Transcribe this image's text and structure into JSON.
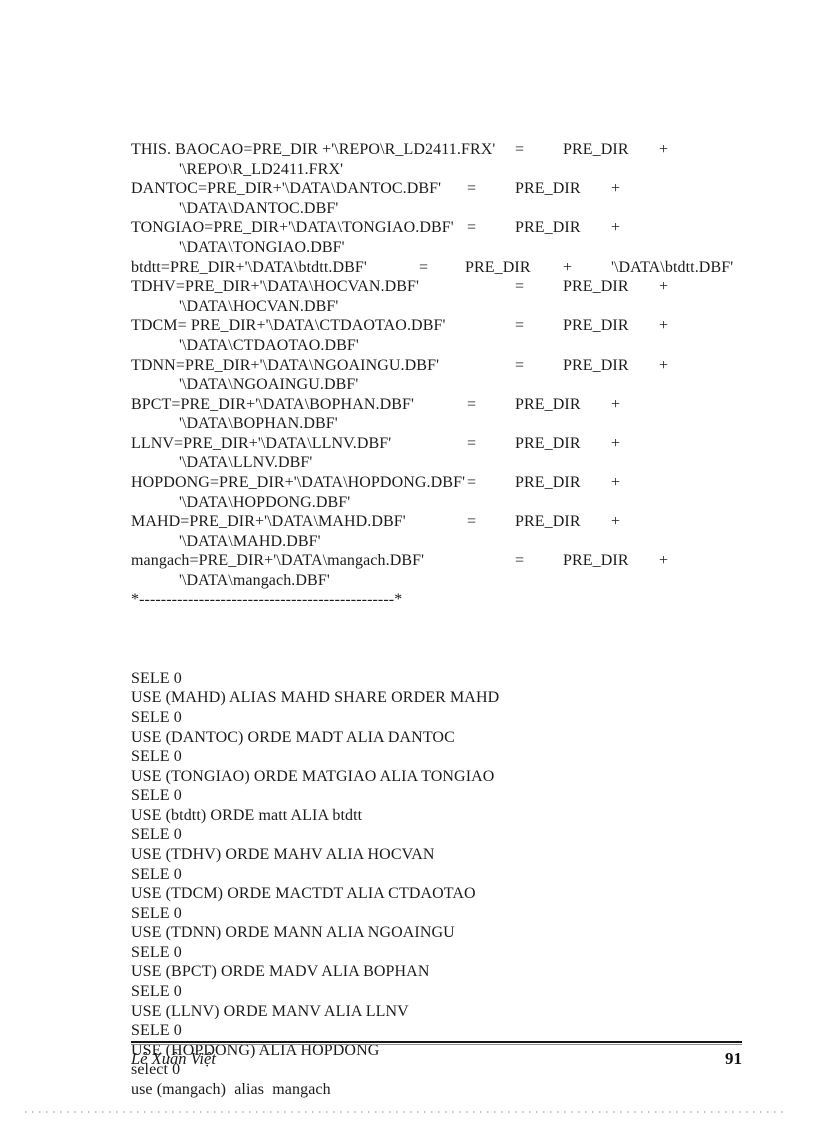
{
  "footer": {
    "author": "Lê Xuân Việt",
    "page_number": "91"
  },
  "listing": {
    "assignment_lines": [
      [
        [
          0,
          "THIS. BAOCAO=PRE_DIR +'\\REPO\\R_LD2411.FRX'"
        ],
        [
          384,
          "="
        ],
        [
          432,
          "PRE_DIR"
        ],
        [
          528,
          "+"
        ]
      ],
      [
        [
          48,
          "'\\REPO\\R_LD2411.FRX'"
        ]
      ],
      [
        [
          0,
          "DANTOC=PRE_DIR+'\\DATA\\DANTOC.DBF'"
        ],
        [
          336,
          "="
        ],
        [
          384,
          "PRE_DIR"
        ],
        [
          480,
          "+"
        ]
      ],
      [
        [
          48,
          "'\\DATA\\DANTOC.DBF'"
        ]
      ],
      [
        [
          0,
          "TONGIAO=PRE_DIR+'\\DATA\\TONGIAO.DBF'"
        ],
        [
          336,
          "="
        ],
        [
          384,
          "PRE_DIR"
        ],
        [
          480,
          "+"
        ]
      ],
      [
        [
          48,
          "'\\DATA\\TONGIAO.DBF'"
        ]
      ],
      [
        [
          0,
          "btdtt=PRE_DIR+'\\DATA\\btdtt.DBF'"
        ],
        [
          288,
          "="
        ],
        [
          334,
          "PRE_DIR"
        ],
        [
          432,
          "+"
        ],
        [
          480,
          "'\\DATA\\btdtt.DBF'"
        ]
      ],
      [
        [
          0,
          "TDHV=PRE_DIR+'\\DATA\\HOCVAN.DBF'"
        ],
        [
          384,
          "="
        ],
        [
          432,
          "PRE_DIR"
        ],
        [
          528,
          "+"
        ]
      ],
      [
        [
          48,
          "'\\DATA\\HOCVAN.DBF'"
        ]
      ],
      [
        [
          0,
          "TDCM= PRE_DIR+'\\DATA\\CTDAOTAO.DBF'"
        ],
        [
          384,
          "="
        ],
        [
          432,
          "PRE_DIR"
        ],
        [
          528,
          "+"
        ]
      ],
      [
        [
          48,
          "'\\DATA\\CTDAOTAO.DBF'"
        ]
      ],
      [
        [
          0,
          "TDNN=PRE_DIR+'\\DATA\\NGOAINGU.DBF'"
        ],
        [
          384,
          "="
        ],
        [
          432,
          "PRE_DIR"
        ],
        [
          528,
          "+"
        ]
      ],
      [
        [
          48,
          "'\\DATA\\NGOAINGU.DBF'"
        ]
      ],
      [
        [
          0,
          "BPCT=PRE_DIR+'\\DATA\\BOPHAN.DBF'"
        ],
        [
          336,
          "="
        ],
        [
          384,
          "PRE_DIR"
        ],
        [
          480,
          "+"
        ]
      ],
      [
        [
          48,
          "'\\DATA\\BOPHAN.DBF'"
        ]
      ],
      [
        [
          0,
          "LLNV=PRE_DIR+'\\DATA\\LLNV.DBF'"
        ],
        [
          336,
          "="
        ],
        [
          384,
          "PRE_DIR"
        ],
        [
          480,
          "+"
        ]
      ],
      [
        [
          48,
          "'\\DATA\\LLNV.DBF'"
        ]
      ],
      [
        [
          0,
          "HOPDONG=PRE_DIR+'\\DATA\\HOPDONG.DBF'"
        ],
        [
          336,
          "="
        ],
        [
          384,
          "PRE_DIR"
        ],
        [
          480,
          "+"
        ]
      ],
      [
        [
          48,
          "'\\DATA\\HOPDONG.DBF'"
        ]
      ],
      [
        [
          0,
          "MAHD=PRE_DIR+'\\DATA\\MAHD.DBF'"
        ],
        [
          336,
          "="
        ],
        [
          384,
          "PRE_DIR"
        ],
        [
          480,
          "+"
        ]
      ],
      [
        [
          48,
          "'\\DATA\\MAHD.DBF'"
        ]
      ],
      [
        [
          0,
          "mangach=PRE_DIR+'\\DATA\\mangach.DBF'"
        ],
        [
          384,
          "="
        ],
        [
          432,
          "PRE_DIR"
        ],
        [
          528,
          "+"
        ]
      ],
      [
        [
          48,
          "'\\DATA\\mangach.DBF'"
        ]
      ],
      [
        [
          0,
          "*-----------------------------------------------*"
        ]
      ]
    ],
    "command_lines": [
      "SELE 0",
      "USE (MAHD) ALIAS MAHD SHARE ORDER MAHD",
      "SELE 0",
      "USE (DANTOC) ORDE MADT ALIA DANTOC",
      "SELE 0",
      "USE (TONGIAO) ORDE MATGIAO ALIA TONGIAO",
      "SELE 0",
      "USE (btdtt) ORDE matt ALIA btdtt",
      "SELE 0",
      "USE (TDHV) ORDE MAHV ALIA HOCVAN",
      "SELE 0",
      "USE (TDCM) ORDE MACTDT ALIA CTDAOTAO",
      "SELE 0",
      "USE (TDNN) ORDE MANN ALIA NGOAINGU",
      "SELE 0",
      "USE (BPCT) ORDE MADV ALIA BOPHAN",
      "SELE 0",
      "USE (LLNV) ORDE MANV ALIA LLNV",
      "SELE 0",
      "USE (HOPDONG) ALIA HOPDONG",
      "select 0",
      "use (mangach)  alias  mangach"
    ]
  }
}
